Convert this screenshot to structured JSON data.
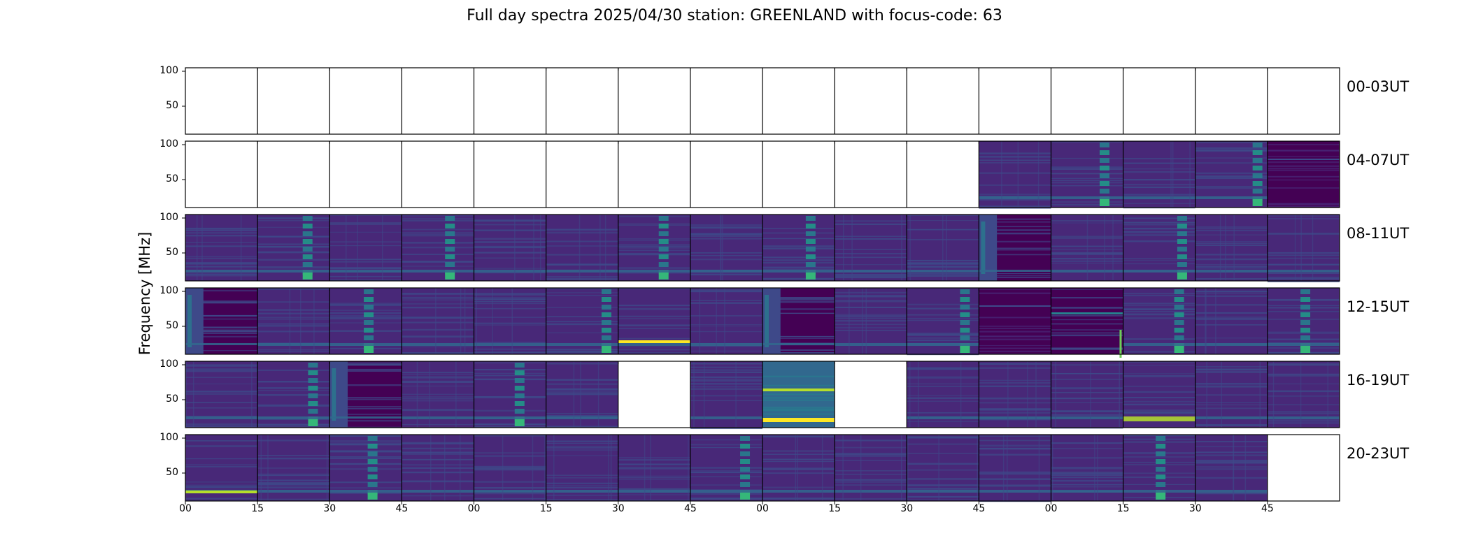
{
  "title": "Full day spectra 2025/04/30 station: GREENLAND with focus-code: 63",
  "colors": {
    "colormap": [
      "#440154",
      "#482878",
      "#3e4989",
      "#31688e",
      "#26828e",
      "#1f9e89",
      "#35b779",
      "#6ece58",
      "#b5de2b",
      "#fde725"
    ]
  },
  "chart_data": {
    "type": "heatmap",
    "title": "Full day spectra 2025/04/30 station: GREENLAND with focus-code: 63",
    "ylabel": "Frequency [MHz]",
    "xlabel": "",
    "yticks": [
      "100",
      "50"
    ],
    "ylim": [
      10,
      105
    ],
    "xticks": [
      "00",
      "15",
      "30",
      "45",
      "00",
      "15",
      "30",
      "45",
      "00",
      "15",
      "30",
      "45",
      "00",
      "15",
      "30",
      "45"
    ],
    "rows": [
      {
        "label": "00-03UT",
        "panels": [
          0,
          0,
          0,
          0,
          0,
          0,
          0,
          0,
          0,
          0,
          0,
          0,
          0,
          0,
          0,
          0
        ]
      },
      {
        "label": "04-07UT",
        "panels": [
          0,
          0,
          0,
          0,
          0,
          0,
          0,
          0,
          0,
          0,
          0,
          3,
          2,
          3,
          2,
          5
        ]
      },
      {
        "label": "08-11UT",
        "panels": [
          3,
          2,
          3,
          2,
          3,
          3,
          2,
          3,
          2,
          3,
          3,
          4,
          3,
          2,
          3,
          3
        ]
      },
      {
        "label": "12-15UT",
        "panels": [
          4,
          3,
          2,
          3,
          3,
          2,
          6,
          3,
          4,
          3,
          2,
          5,
          7,
          2,
          3,
          2
        ]
      },
      {
        "label": "16-19UT",
        "panels": [
          3,
          2,
          4,
          3,
          2,
          3,
          0,
          3,
          8,
          0,
          3,
          3,
          3,
          9,
          3,
          3
        ]
      },
      {
        "label": "20-23UT",
        "panels": [
          10,
          3,
          2,
          3,
          3,
          3,
          3,
          2,
          3,
          3,
          3,
          3,
          3,
          2,
          3,
          0
        ]
      }
    ],
    "panel_kinds": {
      "0": "no data",
      "2": "bright vertical striping",
      "3": "background noise",
      "4": "dark split panel",
      "5": "dark panel",
      "6": "bright horizontal line near 30 MHz",
      "7": "dark upper band with burst",
      "8": "high intensity with band at 65 MHz",
      "9": "bright low-frequency band",
      "10": "bright low line at 25 MHz"
    }
  }
}
